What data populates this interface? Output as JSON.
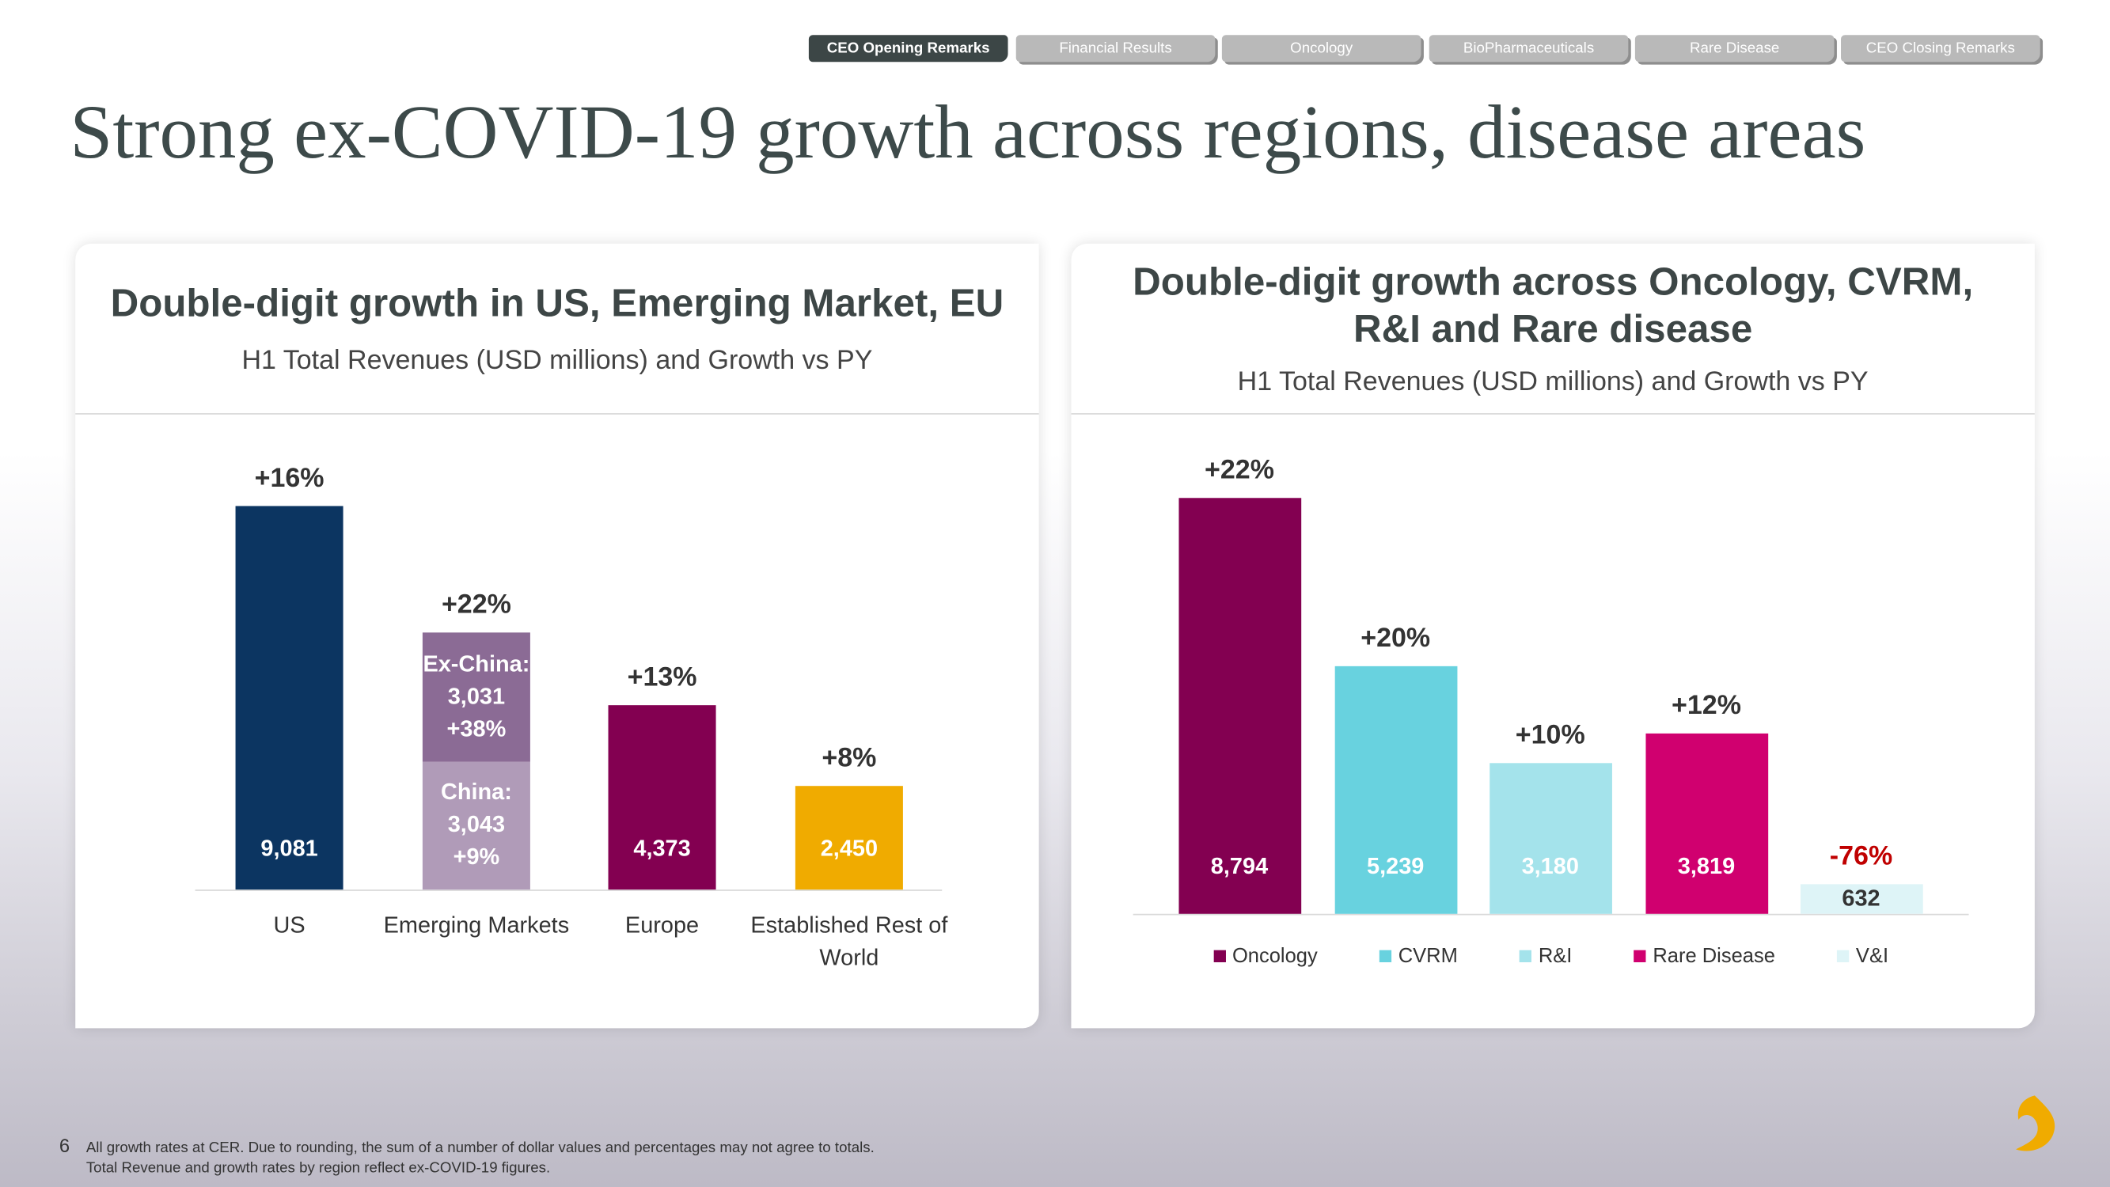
{
  "nav": [
    "CEO Opening Remarks",
    "Financial Results",
    "Oncology",
    "BioPharmaceuticals",
    "Rare Disease",
    "CEO Closing Remarks"
  ],
  "title": "Strong ex-COVID-19 growth across regions, disease areas",
  "page_number": "6",
  "footnotes": [
    "All growth rates at CER. Due to rounding, the sum of a number of dollar values and percentages may not agree to totals.",
    "Total Revenue and growth rates by region reflect ex-COVID-19 figures."
  ],
  "chart_data": [
    {
      "type": "bar",
      "title": "Double-digit growth in US, Emerging Market, EU",
      "subtitle": "H1 Total Revenues (USD millions) and Growth vs PY",
      "categories": [
        "US",
        "Emerging Markets",
        "Europe",
        "Established Rest of World"
      ],
      "values": [
        9081,
        null,
        4373,
        2450
      ],
      "value_labels": [
        "9,081",
        null,
        "4,373",
        "2,450"
      ],
      "growth_labels": [
        "+16%",
        "+22%",
        "+13%",
        "+8%"
      ],
      "colors": [
        "#0c3561",
        null,
        "#830051",
        "#f0ab00"
      ],
      "value_label_colors": [
        "#ffffff",
        null,
        "#ffffff",
        "#ffffff"
      ],
      "growth_colors": [
        "#333333",
        "#333333",
        "#333333",
        "#333333"
      ],
      "stack": {
        "category_index": 1,
        "segments": [
          {
            "name": "China:",
            "value": 3043,
            "value_label": "3,043",
            "growth_label": "+9%",
            "color": "#b09bb8"
          },
          {
            "name": "Ex-China:",
            "value": 3031,
            "value_label": "3,031",
            "growth_label": "+38%",
            "color": "#8b6b95"
          }
        ]
      }
    },
    {
      "type": "bar",
      "title": "Double-digit growth across Oncology, CVRM, R&I and Rare disease",
      "subtitle": "H1 Total Revenues (USD millions) and Growth vs PY",
      "categories": [
        "Oncology",
        "CVRM",
        "R&I",
        "Rare Disease",
        "V&I"
      ],
      "values": [
        8794,
        5239,
        3180,
        3819,
        632
      ],
      "value_labels": [
        "8,794",
        "5,239",
        "3,180",
        "3,819",
        "632"
      ],
      "growth_labels": [
        "+22%",
        "+20%",
        "+10%",
        "+12%",
        "-76%"
      ],
      "colors": [
        "#830051",
        "#68d2df",
        "#a4e3eb",
        "#d0006f",
        "#def4f7"
      ],
      "value_label_colors": [
        "#ffffff",
        "#ffffff",
        "#ffffff",
        "#ffffff",
        "#333333"
      ],
      "growth_colors": [
        "#333333",
        "#333333",
        "#333333",
        "#333333",
        "#c00000"
      ],
      "legend": "bottom"
    }
  ]
}
